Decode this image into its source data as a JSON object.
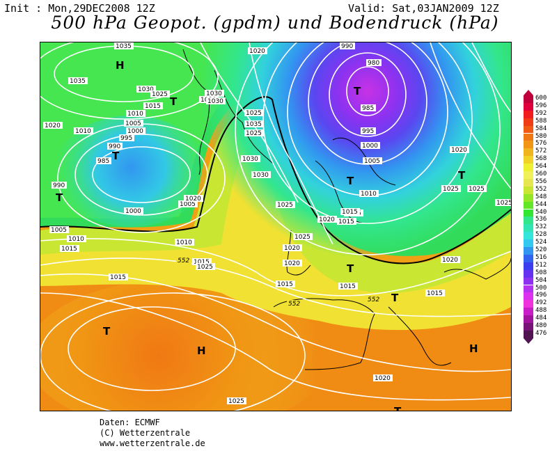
{
  "header": {
    "init": "Init : Mon,29DEC2008 12Z",
    "valid": "Valid: Sat,03JAN2009 12Z",
    "title": "500 hPa Geopot. (gpdm) und Bodendruck (hPa)"
  },
  "credits": [
    "Daten: ECMWF",
    "(C) Wetterzentrale",
    "www.wetterzentrale.de"
  ],
  "colorbar": {
    "levels": [
      "600",
      "596",
      "592",
      "588",
      "584",
      "580",
      "576",
      "572",
      "568",
      "564",
      "560",
      "556",
      "552",
      "548",
      "544",
      "540",
      "536",
      "532",
      "528",
      "524",
      "520",
      "516",
      "512",
      "508",
      "504",
      "500",
      "496",
      "492",
      "488",
      "484",
      "480",
      "476"
    ],
    "colors": [
      "#c0003c",
      "#e0003c",
      "#f01e1e",
      "#f03c14",
      "#f05a14",
      "#f07814",
      "#f09614",
      "#f0b41e",
      "#f0d228",
      "#f0f032",
      "#f0f05a",
      "#e6e650",
      "#c8e632",
      "#96e628",
      "#64e628",
      "#32e632",
      "#32e68c",
      "#32e6b4",
      "#32e6dc",
      "#32c8f0",
      "#3296f0",
      "#3264f0",
      "#3c3cf0",
      "#6432f0",
      "#8c32f0",
      "#b432f0",
      "#dc32f0",
      "#f032dc",
      "#c81ec8",
      "#a014a0",
      "#781478",
      "#501450"
    ]
  },
  "map": {
    "pressure_labels": [
      {
        "text": "1035"
      },
      {
        "text": "1035"
      },
      {
        "text": "1030"
      },
      {
        "text": "1025"
      },
      {
        "text": "1020"
      },
      {
        "text": "1015"
      },
      {
        "text": "1010"
      },
      {
        "text": "1005"
      },
      {
        "text": "1000"
      },
      {
        "text": "995"
      },
      {
        "text": "990"
      },
      {
        "text": "985"
      },
      {
        "text": "990"
      },
      {
        "text": "1000"
      },
      {
        "text": "1005"
      },
      {
        "text": "1005"
      },
      {
        "text": "1010"
      },
      {
        "text": "1015"
      },
      {
        "text": "1010"
      },
      {
        "text": "1020"
      },
      {
        "text": "1015"
      },
      {
        "text": "1010"
      },
      {
        "text": "1020"
      },
      {
        "text": "1030"
      },
      {
        "text": "1030"
      },
      {
        "text": "1025"
      },
      {
        "text": "1035"
      },
      {
        "text": "1025"
      },
      {
        "text": "1030"
      },
      {
        "text": "1030"
      },
      {
        "text": "1020"
      },
      {
        "text": "1025"
      },
      {
        "text": "990"
      },
      {
        "text": "980"
      },
      {
        "text": "985"
      },
      {
        "text": "995"
      },
      {
        "text": "1000"
      },
      {
        "text": "1005"
      },
      {
        "text": "1010"
      },
      {
        "text": "1015"
      },
      {
        "text": "1020"
      },
      {
        "text": "1015"
      },
      {
        "text": "1015"
      },
      {
        "text": "1020"
      },
      {
        "text": "1025"
      },
      {
        "text": "1025"
      },
      {
        "text": "1025"
      },
      {
        "text": "1020"
      },
      {
        "text": "1020"
      },
      {
        "text": "1020"
      },
      {
        "text": "1015"
      },
      {
        "text": "1015"
      },
      {
        "text": "1015"
      },
      {
        "text": "1025"
      },
      {
        "text": "1015"
      },
      {
        "text": "1020"
      },
      {
        "text": "1025"
      },
      {
        "text": "1025"
      }
    ],
    "geopotential_labels": [
      {
        "text": "552"
      },
      {
        "text": "552"
      },
      {
        "text": "552"
      }
    ],
    "centers": [
      {
        "type": "high",
        "letter": "H"
      },
      {
        "type": "low",
        "letter": "T"
      },
      {
        "type": "low",
        "letter": "T"
      },
      {
        "type": "low",
        "letter": "T"
      },
      {
        "type": "low",
        "letter": "T"
      },
      {
        "type": "low",
        "letter": "T"
      },
      {
        "type": "low",
        "letter": "T"
      },
      {
        "type": "low",
        "letter": "T"
      },
      {
        "type": "low",
        "letter": "T"
      },
      {
        "type": "high",
        "letter": "H"
      },
      {
        "type": "low",
        "letter": "T"
      },
      {
        "type": "high",
        "letter": "H"
      },
      {
        "type": "low",
        "letter": "T"
      }
    ]
  }
}
